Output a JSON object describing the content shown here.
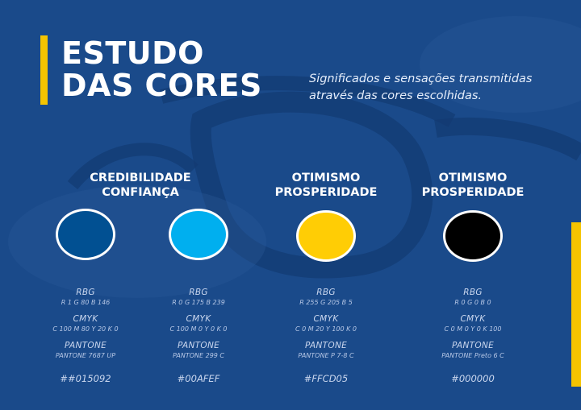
{
  "header": {
    "title_line1": "ESTUDO",
    "title_line2": "DAS CORES",
    "subtitle_line1": "Significados e sensações transmitidas",
    "subtitle_line2": "através das cores escolhidas."
  },
  "colors": {
    "background": "#1a4a8a",
    "accent": "#f5c400"
  },
  "groups": [
    {
      "line1": "CREDIBILIDADE",
      "line2": "CONFIANÇA"
    },
    {
      "line1": "OTIMISMO",
      "line2": "PROSPERIDADE"
    },
    {
      "line1": "OTIMISMO",
      "line2": "PROSPERIDADE"
    }
  ],
  "swatches": [
    {
      "fill": "#015092",
      "rgb_label": "RBG",
      "rgb": "R 1    G 80   B 146",
      "cmyk_label": "CMYK",
      "cmyk": "C 100   M 80   Y 20   K 0",
      "pantone_label": "PANTONE",
      "pantone": "PANTONE 7687 UP",
      "hex": "##015092"
    },
    {
      "fill": "#00AFEF",
      "rgb_label": "RBG",
      "rgb": "R 0    G 175   B 239",
      "cmyk_label": "CMYK",
      "cmyk": "C 100    M 0    Y 0    K 0",
      "pantone_label": "PANTONE",
      "pantone": "PANTONE 299 C",
      "hex": "#00AFEF"
    },
    {
      "fill": "#FFCD05",
      "rgb_label": "RBG",
      "rgb": "R 255    G 205    B 5",
      "cmyk_label": "CMYK",
      "cmyk": "C 0    M 20    Y 100   K 0",
      "pantone_label": "PANTONE",
      "pantone": "PANTONE P 7-8 C",
      "hex": "#FFCD05"
    },
    {
      "fill": "#000000",
      "rgb_label": "RBG",
      "rgb": "R 0    G 0    B 0",
      "cmyk_label": "CMYK",
      "cmyk": "C 0    M 0    Y 0   K 100",
      "pantone_label": "PANTONE",
      "pantone": "PANTONE Preto 6 C",
      "hex": "#000000"
    }
  ]
}
